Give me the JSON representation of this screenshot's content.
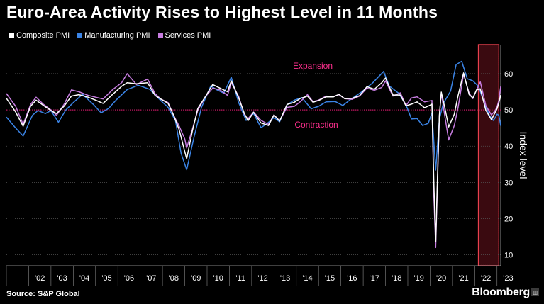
{
  "title": "Euro-Area Activity Rises to Highest Level in 11 Months",
  "source": "Source: S&P Global",
  "brand": "Bloomberg",
  "colors": {
    "composite": "#ffffff",
    "manufacturing": "#3b84e6",
    "services": "#c77de0",
    "threshold": "#e0196f",
    "annotation": "#ff2f8e",
    "grid": "#555555",
    "highlight": "#e8404e"
  },
  "chart_data": {
    "type": "line",
    "title": "Euro-Area Activity Rises to Highest Level in 11 Months",
    "xlabel": "",
    "ylabel": "Index level",
    "ylim": [
      7,
      68
    ],
    "yticks": [
      10,
      20,
      30,
      40,
      50,
      60
    ],
    "xticks": [
      "'02",
      "'03",
      "'04",
      "'05",
      "'06",
      "'07",
      "'08",
      "'09",
      "'10",
      "'11",
      "'12",
      "'13",
      "'14",
      "'15",
      "'16",
      "'17",
      "'18",
      "'19",
      "'20",
      "'21",
      "'22",
      "'23"
    ],
    "x_range": [
      "2001-01",
      "2023-03"
    ],
    "grid": true,
    "legend_position": "top-left",
    "threshold": {
      "value": 50,
      "label_above": "Expansion",
      "label_below": "Contraction"
    },
    "highlight_region": {
      "start": "2022-03",
      "end": "2023-02"
    },
    "series": [
      {
        "name": "Composite PMI",
        "color_key": "composite",
        "points": [
          [
            "2001-01",
            53.2
          ],
          [
            "2001-06",
            49.4
          ],
          [
            "2001-10",
            45.5
          ],
          [
            "2002-02",
            51.0
          ],
          [
            "2002-05",
            52.7
          ],
          [
            "2002-09",
            51.2
          ],
          [
            "2003-01",
            49.8
          ],
          [
            "2003-04",
            49.0
          ],
          [
            "2003-08",
            51.0
          ],
          [
            "2003-12",
            53.8
          ],
          [
            "2004-04",
            54.2
          ],
          [
            "2004-09",
            53.5
          ],
          [
            "2005-01",
            52.7
          ],
          [
            "2005-05",
            51.8
          ],
          [
            "2005-10",
            54.2
          ],
          [
            "2006-03",
            56.5
          ],
          [
            "2006-06",
            57.5
          ],
          [
            "2006-11",
            57.2
          ],
          [
            "2007-05",
            57.5
          ],
          [
            "2007-09",
            54.0
          ],
          [
            "2007-12",
            53.0
          ],
          [
            "2008-04",
            51.8
          ],
          [
            "2008-07",
            48.5
          ],
          [
            "2008-10",
            44.5
          ],
          [
            "2009-01",
            38.5
          ],
          [
            "2009-02",
            36.5
          ],
          [
            "2009-05",
            44.0
          ],
          [
            "2009-08",
            50.4
          ],
          [
            "2009-12",
            53.6
          ],
          [
            "2010-04",
            57.0
          ],
          [
            "2010-08",
            56.0
          ],
          [
            "2010-12",
            55.0
          ],
          [
            "2011-02",
            58.0
          ],
          [
            "2011-06",
            53.3
          ],
          [
            "2011-09",
            49.1
          ],
          [
            "2011-11",
            47.0
          ],
          [
            "2012-02",
            49.3
          ],
          [
            "2012-06",
            46.4
          ],
          [
            "2012-10",
            45.7
          ],
          [
            "2013-01",
            48.6
          ],
          [
            "2013-04",
            46.9
          ],
          [
            "2013-08",
            51.5
          ],
          [
            "2013-12",
            52.1
          ],
          [
            "2014-03",
            53.1
          ],
          [
            "2014-07",
            53.8
          ],
          [
            "2014-10",
            52.1
          ],
          [
            "2015-01",
            52.6
          ],
          [
            "2015-05",
            53.6
          ],
          [
            "2015-09",
            53.6
          ],
          [
            "2015-12",
            54.3
          ],
          [
            "2016-03",
            53.1
          ],
          [
            "2016-07",
            53.2
          ],
          [
            "2016-11",
            53.9
          ],
          [
            "2017-03",
            56.4
          ],
          [
            "2017-07",
            55.7
          ],
          [
            "2017-11",
            57.5
          ],
          [
            "2018-01",
            58.8
          ],
          [
            "2018-05",
            54.1
          ],
          [
            "2018-09",
            54.1
          ],
          [
            "2018-12",
            51.1
          ],
          [
            "2019-03",
            51.6
          ],
          [
            "2019-06",
            52.2
          ],
          [
            "2019-10",
            50.6
          ],
          [
            "2020-01",
            51.3
          ],
          [
            "2020-02",
            51.6
          ],
          [
            "2020-03",
            29.7
          ],
          [
            "2020-04",
            13.6
          ],
          [
            "2020-05",
            31.9
          ],
          [
            "2020-06",
            48.5
          ],
          [
            "2020-07",
            54.9
          ],
          [
            "2020-09",
            50.4
          ],
          [
            "2020-11",
            45.3
          ],
          [
            "2021-02",
            48.8
          ],
          [
            "2021-04",
            53.8
          ],
          [
            "2021-07",
            60.2
          ],
          [
            "2021-10",
            54.2
          ],
          [
            "2021-12",
            53.3
          ],
          [
            "2022-02",
            55.5
          ],
          [
            "2022-04",
            55.8
          ],
          [
            "2022-07",
            49.9
          ],
          [
            "2022-10",
            47.3
          ],
          [
            "2022-12",
            49.3
          ],
          [
            "2023-01",
            50.3
          ],
          [
            "2023-02",
            52.0
          ],
          [
            "2023-03",
            54.1
          ]
        ]
      },
      {
        "name": "Manufacturing PMI",
        "color_key": "manufacturing",
        "points": [
          [
            "2001-01",
            48.0
          ],
          [
            "2001-06",
            45.0
          ],
          [
            "2001-10",
            42.8
          ],
          [
            "2002-03",
            48.5
          ],
          [
            "2002-06",
            49.8
          ],
          [
            "2002-10",
            49.0
          ],
          [
            "2003-01",
            49.8
          ],
          [
            "2003-05",
            46.6
          ],
          [
            "2003-09",
            50.0
          ],
          [
            "2004-01",
            52.0
          ],
          [
            "2004-06",
            54.3
          ],
          [
            "2004-12",
            51.4
          ],
          [
            "2005-04",
            49.2
          ],
          [
            "2005-08",
            50.4
          ],
          [
            "2005-12",
            52.7
          ],
          [
            "2006-06",
            55.6
          ],
          [
            "2006-12",
            56.8
          ],
          [
            "2007-06",
            55.7
          ],
          [
            "2007-12",
            52.6
          ],
          [
            "2008-04",
            50.7
          ],
          [
            "2008-08",
            47.0
          ],
          [
            "2008-11",
            38.0
          ],
          [
            "2009-02",
            33.5
          ],
          [
            "2009-06",
            42.6
          ],
          [
            "2009-10",
            50.7
          ],
          [
            "2010-03",
            56.6
          ],
          [
            "2010-06",
            55.6
          ],
          [
            "2010-10",
            54.6
          ],
          [
            "2011-02",
            59.0
          ],
          [
            "2011-06",
            52.0
          ],
          [
            "2011-10",
            47.1
          ],
          [
            "2012-02",
            49.0
          ],
          [
            "2012-06",
            45.1
          ],
          [
            "2012-09",
            46.1
          ],
          [
            "2013-01",
            47.9
          ],
          [
            "2013-04",
            46.7
          ],
          [
            "2013-08",
            51.4
          ],
          [
            "2013-12",
            52.7
          ],
          [
            "2014-04",
            53.4
          ],
          [
            "2014-09",
            50.3
          ],
          [
            "2015-01",
            51.0
          ],
          [
            "2015-05",
            52.2
          ],
          [
            "2015-10",
            52.3
          ],
          [
            "2016-02",
            51.2
          ],
          [
            "2016-06",
            52.8
          ],
          [
            "2016-12",
            54.9
          ],
          [
            "2017-06",
            57.4
          ],
          [
            "2017-12",
            60.6
          ],
          [
            "2018-03",
            56.6
          ],
          [
            "2018-08",
            54.6
          ],
          [
            "2018-12",
            51.4
          ],
          [
            "2019-03",
            47.5
          ],
          [
            "2019-06",
            47.6
          ],
          [
            "2019-09",
            45.7
          ],
          [
            "2019-12",
            46.3
          ],
          [
            "2020-02",
            49.2
          ],
          [
            "2020-04",
            33.4
          ],
          [
            "2020-06",
            47.4
          ],
          [
            "2020-08",
            51.7
          ],
          [
            "2020-12",
            55.2
          ],
          [
            "2021-03",
            62.5
          ],
          [
            "2021-06",
            63.4
          ],
          [
            "2021-09",
            58.6
          ],
          [
            "2021-12",
            58.0
          ],
          [
            "2022-03",
            56.5
          ],
          [
            "2022-06",
            52.1
          ],
          [
            "2022-09",
            48.4
          ],
          [
            "2022-11",
            47.1
          ],
          [
            "2022-12",
            47.8
          ],
          [
            "2023-01",
            48.8
          ],
          [
            "2023-02",
            48.5
          ],
          [
            "2023-03",
            45.6
          ]
        ]
      },
      {
        "name": "Services PMI",
        "color_key": "services",
        "points": [
          [
            "2001-01",
            54.5
          ],
          [
            "2001-06",
            51.0
          ],
          [
            "2001-10",
            46.0
          ],
          [
            "2002-02",
            51.5
          ],
          [
            "2002-05",
            53.5
          ],
          [
            "2002-09",
            51.5
          ],
          [
            "2003-01",
            50.0
          ],
          [
            "2003-04",
            48.5
          ],
          [
            "2003-08",
            51.5
          ],
          [
            "2003-12",
            55.5
          ],
          [
            "2004-04",
            55.0
          ],
          [
            "2004-09",
            54.0
          ],
          [
            "2005-01",
            53.5
          ],
          [
            "2005-05",
            53.0
          ],
          [
            "2005-10",
            55.5
          ],
          [
            "2006-03",
            57.5
          ],
          [
            "2006-06",
            60.0
          ],
          [
            "2006-11",
            57.0
          ],
          [
            "2007-05",
            58.5
          ],
          [
            "2007-09",
            54.5
          ],
          [
            "2007-12",
            53.0
          ],
          [
            "2008-04",
            52.0
          ],
          [
            "2008-07",
            48.5
          ],
          [
            "2008-10",
            45.5
          ],
          [
            "2009-01",
            42.0
          ],
          [
            "2009-02",
            39.5
          ],
          [
            "2009-05",
            44.5
          ],
          [
            "2009-08",
            49.9
          ],
          [
            "2009-12",
            53.6
          ],
          [
            "2010-04",
            56.0
          ],
          [
            "2010-08",
            55.5
          ],
          [
            "2010-12",
            54.0
          ],
          [
            "2011-02",
            57.5
          ],
          [
            "2011-06",
            53.7
          ],
          [
            "2011-09",
            48.8
          ],
          [
            "2011-11",
            47.5
          ],
          [
            "2012-02",
            49.4
          ],
          [
            "2012-06",
            47.1
          ],
          [
            "2012-10",
            46.0
          ],
          [
            "2013-01",
            48.6
          ],
          [
            "2013-04",
            47.0
          ],
          [
            "2013-08",
            50.7
          ],
          [
            "2013-12",
            51.0
          ],
          [
            "2014-03",
            52.2
          ],
          [
            "2014-07",
            54.2
          ],
          [
            "2014-10",
            52.3
          ],
          [
            "2015-01",
            52.7
          ],
          [
            "2015-05",
            53.8
          ],
          [
            "2015-09",
            53.7
          ],
          [
            "2015-12",
            54.2
          ],
          [
            "2016-03",
            53.1
          ],
          [
            "2016-07",
            52.9
          ],
          [
            "2016-11",
            53.8
          ],
          [
            "2017-03",
            56.0
          ],
          [
            "2017-07",
            55.4
          ],
          [
            "2017-11",
            56.2
          ],
          [
            "2018-01",
            58.0
          ],
          [
            "2018-05",
            53.8
          ],
          [
            "2018-09",
            54.7
          ],
          [
            "2018-12",
            51.2
          ],
          [
            "2019-03",
            53.3
          ],
          [
            "2019-06",
            53.6
          ],
          [
            "2019-10",
            52.2
          ],
          [
            "2020-01",
            52.5
          ],
          [
            "2020-02",
            52.6
          ],
          [
            "2020-03",
            26.4
          ],
          [
            "2020-04",
            12.0
          ],
          [
            "2020-05",
            30.5
          ],
          [
            "2020-06",
            48.3
          ],
          [
            "2020-07",
            54.7
          ],
          [
            "2020-09",
            48.0
          ],
          [
            "2020-11",
            41.7
          ],
          [
            "2021-02",
            45.7
          ],
          [
            "2021-04",
            50.5
          ],
          [
            "2021-07",
            59.8
          ],
          [
            "2021-10",
            54.6
          ],
          [
            "2021-12",
            53.1
          ],
          [
            "2022-02",
            55.5
          ],
          [
            "2022-04",
            57.7
          ],
          [
            "2022-07",
            51.2
          ],
          [
            "2022-10",
            48.6
          ],
          [
            "2022-12",
            49.8
          ],
          [
            "2023-01",
            50.8
          ],
          [
            "2023-02",
            52.7
          ],
          [
            "2023-03",
            56.5
          ]
        ]
      }
    ]
  }
}
